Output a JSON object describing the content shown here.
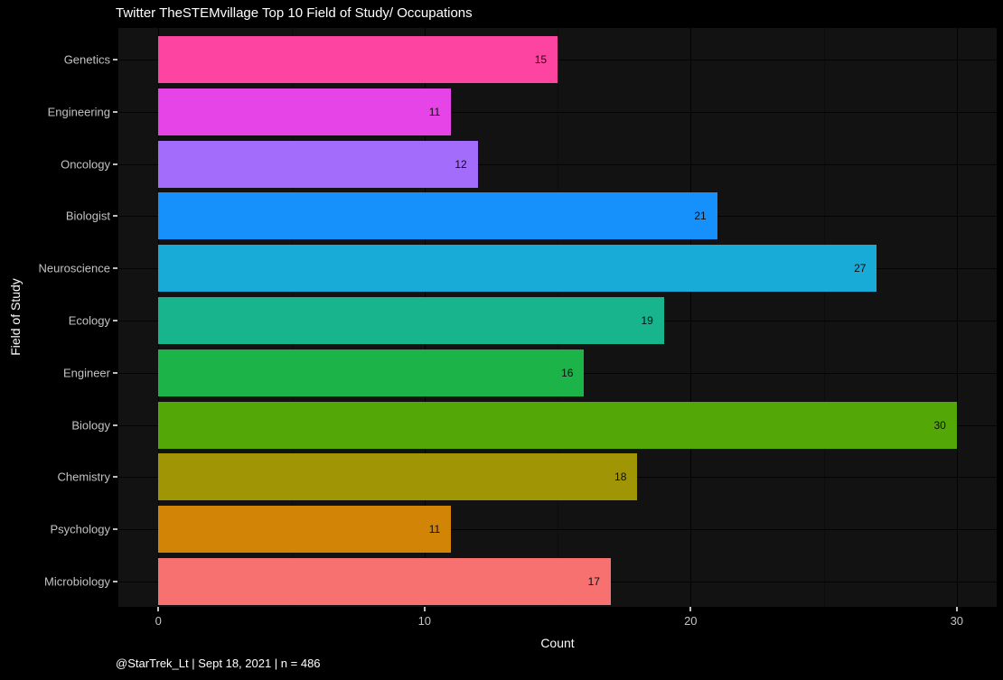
{
  "chart_data": {
    "type": "bar",
    "orientation": "horizontal",
    "title": "Twitter TheSTEMvillage Top 10 Field of Study/ Occupations",
    "xlabel": "Count",
    "ylabel": "Field of Study",
    "caption": "@StarTrek_Lt | Sept 18, 2021 | n = 486",
    "categories": [
      "Genetics",
      "Engineering",
      "Oncology",
      "Biologist",
      "Neuroscience",
      "Ecology",
      "Engineer",
      "Biology",
      "Chemistry",
      "Psychology",
      "Microbiology"
    ],
    "values": [
      15,
      11,
      12,
      21,
      27,
      19,
      16,
      30,
      18,
      11,
      17
    ],
    "bar_colors": [
      "#fc44a0",
      "#e644e6",
      "#a46cfb",
      "#1691fb",
      "#18abd7",
      "#18b48e",
      "#1cb449",
      "#53a807",
      "#a09505",
      "#d28407",
      "#f87171"
    ],
    "value_labels_shown": true,
    "xlim": [
      0,
      30
    ],
    "x_major_ticks": [
      0,
      10,
      20,
      30
    ],
    "x_minor_ticks": [
      5,
      15,
      25
    ],
    "grid": "major and minor vertical lines plus horizontal category lines, darker than panel",
    "legend": false,
    "colors": {
      "background": "#000000",
      "panel_background": "#121212",
      "grid_major": "#040404",
      "grid_minor": "#0d0d0d",
      "axis_text": "#c3c3c3",
      "axis_title": "#fafafa",
      "tick_mark": "#bdbdbd",
      "title_text": "#ffffff",
      "caption_text": "#ffffff",
      "bar_value_text": "#0d0d0d"
    }
  }
}
